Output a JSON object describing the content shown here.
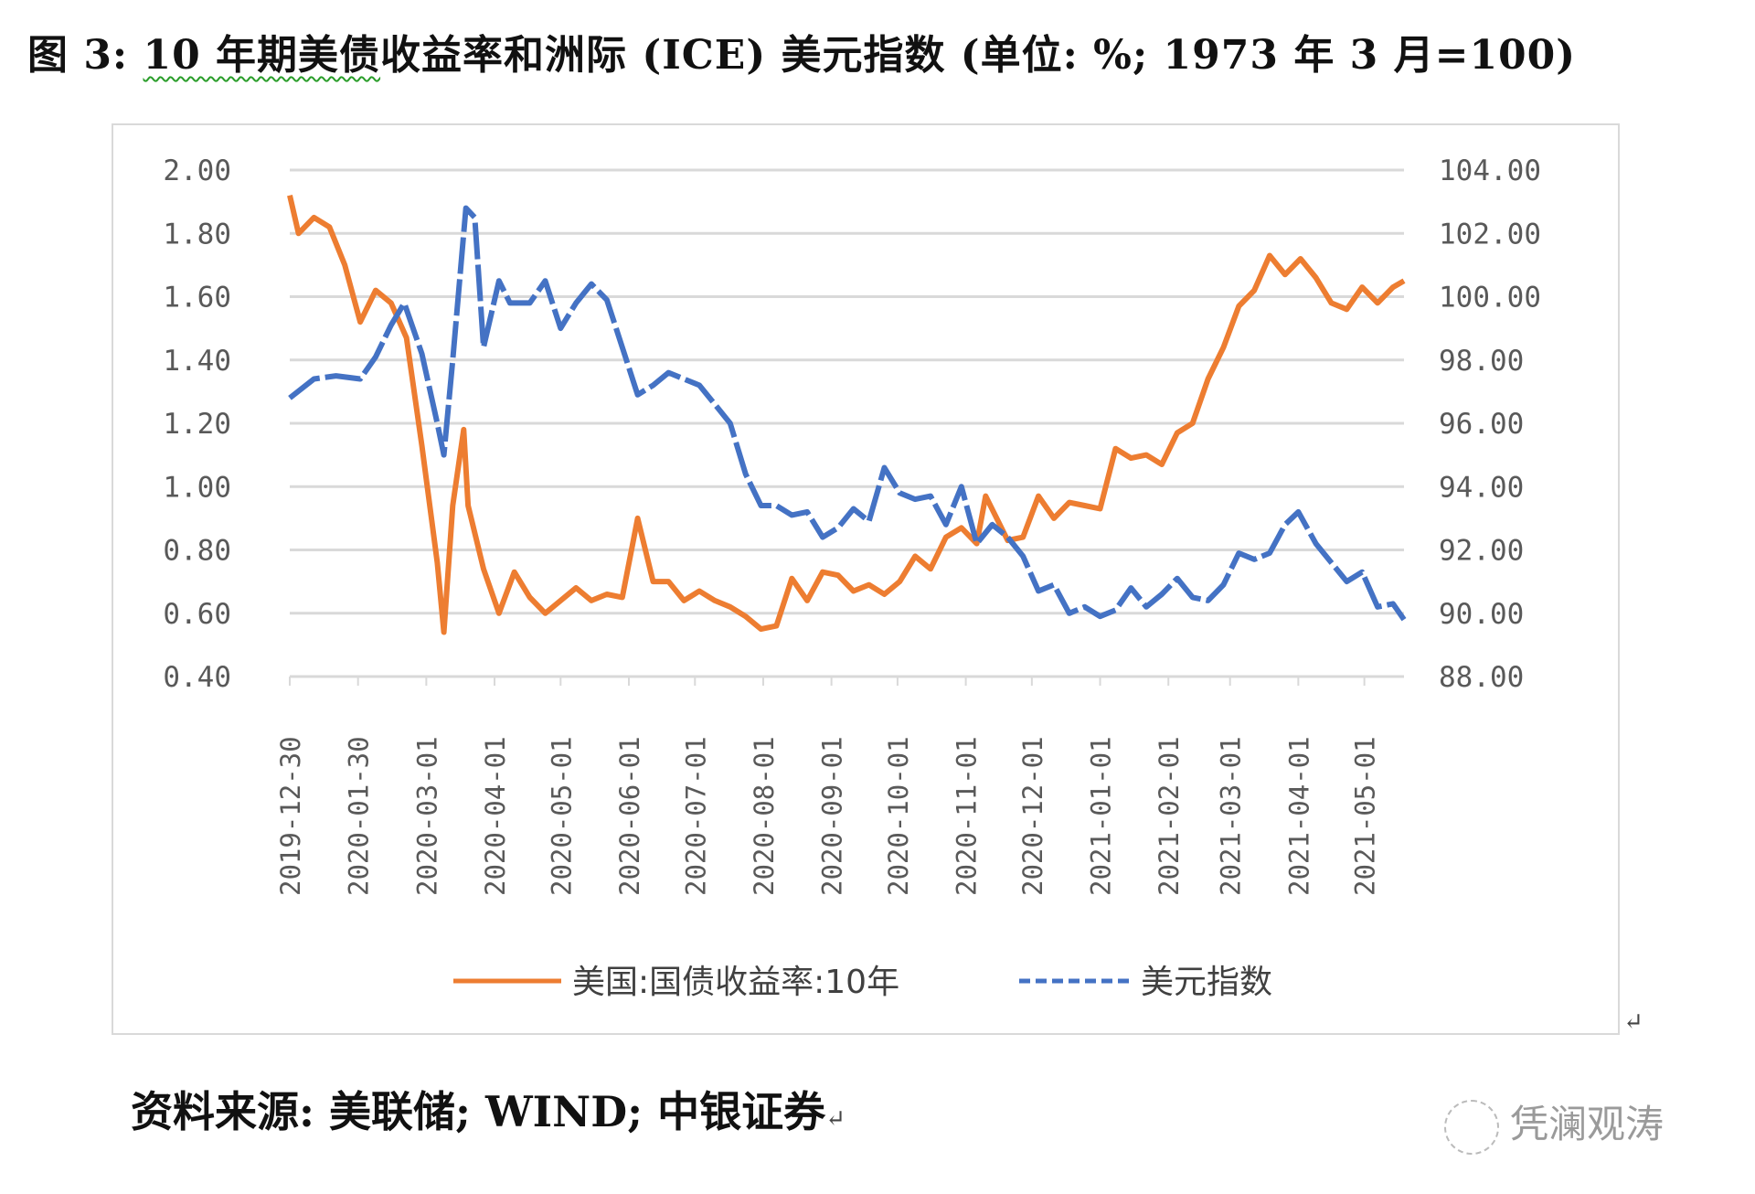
{
  "title": {
    "prefix": "图 3: ",
    "underlined": "10 年期美债",
    "rest": "收益率和洲际 (ICE) 美元指数 (单位: %; 1973 年 3 月=100)"
  },
  "source": "资料来源: 美联储; WIND; 中银证券",
  "return_mark": "↵",
  "watermark": "凭澜观涛",
  "chart_data": {
    "type": "line",
    "title": "",
    "grid": true,
    "legend_position": "bottom",
    "left_axis": {
      "ylim": [
        0.4,
        2.0
      ],
      "ticks": [
        "0.40",
        "0.60",
        "0.80",
        "1.00",
        "1.20",
        "1.40",
        "1.60",
        "1.80",
        "2.00"
      ]
    },
    "right_axis": {
      "ylim": [
        88,
        104
      ],
      "ticks": [
        "88.00",
        "90.00",
        "92.00",
        "94.00",
        "96.00",
        "98.00",
        "100.00",
        "102.00",
        "104.00"
      ]
    },
    "x_axis": {
      "range": [
        "2019-12-30",
        "2021-05-19"
      ],
      "ticks": [
        "2019-12-30",
        "2020-01-30",
        "2020-03-01",
        "2020-04-01",
        "2020-05-01",
        "2020-06-01",
        "2020-07-01",
        "2020-08-01",
        "2020-09-01",
        "2020-10-01",
        "2020-11-01",
        "2020-12-01",
        "2021-01-01",
        "2021-02-01",
        "2021-03-01",
        "2021-04-01",
        "2021-05-01"
      ]
    },
    "colors": {
      "yield": "#ED7D31",
      "dollar": "#4472C4"
    },
    "series": [
      {
        "name": "美国:国债收益率:10年",
        "axis": "left",
        "style": "solid",
        "points": [
          [
            "2019-12-30",
            1.92
          ],
          [
            "2020-01-03",
            1.8
          ],
          [
            "2020-01-10",
            1.85
          ],
          [
            "2020-01-17",
            1.82
          ],
          [
            "2020-01-24",
            1.7
          ],
          [
            "2020-01-31",
            1.52
          ],
          [
            "2020-02-07",
            1.62
          ],
          [
            "2020-02-14",
            1.58
          ],
          [
            "2020-02-21",
            1.47
          ],
          [
            "2020-02-28",
            1.13
          ],
          [
            "2020-03-06",
            0.76
          ],
          [
            "2020-03-09",
            0.54
          ],
          [
            "2020-03-13",
            0.94
          ],
          [
            "2020-03-18",
            1.18
          ],
          [
            "2020-03-20",
            0.94
          ],
          [
            "2020-03-27",
            0.74
          ],
          [
            "2020-04-03",
            0.6
          ],
          [
            "2020-04-10",
            0.73
          ],
          [
            "2020-04-17",
            0.65
          ],
          [
            "2020-04-24",
            0.6
          ],
          [
            "2020-05-01",
            0.64
          ],
          [
            "2020-05-08",
            0.68
          ],
          [
            "2020-05-15",
            0.64
          ],
          [
            "2020-05-22",
            0.66
          ],
          [
            "2020-05-29",
            0.65
          ],
          [
            "2020-06-05",
            0.9
          ],
          [
            "2020-06-12",
            0.7
          ],
          [
            "2020-06-19",
            0.7
          ],
          [
            "2020-06-26",
            0.64
          ],
          [
            "2020-07-03",
            0.67
          ],
          [
            "2020-07-10",
            0.64
          ],
          [
            "2020-07-17",
            0.62
          ],
          [
            "2020-07-24",
            0.59
          ],
          [
            "2020-07-31",
            0.55
          ],
          [
            "2020-08-07",
            0.56
          ],
          [
            "2020-08-14",
            0.71
          ],
          [
            "2020-08-21",
            0.64
          ],
          [
            "2020-08-28",
            0.73
          ],
          [
            "2020-09-04",
            0.72
          ],
          [
            "2020-09-11",
            0.67
          ],
          [
            "2020-09-18",
            0.69
          ],
          [
            "2020-09-25",
            0.66
          ],
          [
            "2020-10-02",
            0.7
          ],
          [
            "2020-10-09",
            0.78
          ],
          [
            "2020-10-16",
            0.74
          ],
          [
            "2020-10-23",
            0.84
          ],
          [
            "2020-10-30",
            0.87
          ],
          [
            "2020-11-06",
            0.82
          ],
          [
            "2020-11-10",
            0.97
          ],
          [
            "2020-11-20",
            0.83
          ],
          [
            "2020-11-27",
            0.84
          ],
          [
            "2020-12-04",
            0.97
          ],
          [
            "2020-12-11",
            0.9
          ],
          [
            "2020-12-18",
            0.95
          ],
          [
            "2020-12-25",
            0.94
          ],
          [
            "2021-01-01",
            0.93
          ],
          [
            "2021-01-08",
            1.12
          ],
          [
            "2021-01-15",
            1.09
          ],
          [
            "2021-01-22",
            1.1
          ],
          [
            "2021-01-29",
            1.07
          ],
          [
            "2021-02-05",
            1.17
          ],
          [
            "2021-02-12",
            1.2
          ],
          [
            "2021-02-19",
            1.34
          ],
          [
            "2021-02-26",
            1.44
          ],
          [
            "2021-03-05",
            1.57
          ],
          [
            "2021-03-12",
            1.62
          ],
          [
            "2021-03-19",
            1.73
          ],
          [
            "2021-03-26",
            1.67
          ],
          [
            "2021-04-02",
            1.72
          ],
          [
            "2021-04-09",
            1.66
          ],
          [
            "2021-04-16",
            1.58
          ],
          [
            "2021-04-23",
            1.56
          ],
          [
            "2021-04-30",
            1.63
          ],
          [
            "2021-05-07",
            1.58
          ],
          [
            "2021-05-14",
            1.63
          ],
          [
            "2021-05-19",
            1.65
          ]
        ]
      },
      {
        "name": "美元指数",
        "axis": "right",
        "style": "dashed",
        "points": [
          [
            "2019-12-30",
            96.8
          ],
          [
            "2020-01-10",
            97.4
          ],
          [
            "2020-01-20",
            97.5
          ],
          [
            "2020-01-31",
            97.4
          ],
          [
            "2020-02-07",
            98.1
          ],
          [
            "2020-02-14",
            99.1
          ],
          [
            "2020-02-20",
            99.8
          ],
          [
            "2020-02-28",
            98.2
          ],
          [
            "2020-03-06",
            96.0
          ],
          [
            "2020-03-09",
            95.0
          ],
          [
            "2020-03-13",
            98.0
          ],
          [
            "2020-03-19",
            102.8
          ],
          [
            "2020-03-23",
            102.5
          ],
          [
            "2020-03-27",
            98.4
          ],
          [
            "2020-04-03",
            100.5
          ],
          [
            "2020-04-08",
            99.8
          ],
          [
            "2020-04-17",
            99.8
          ],
          [
            "2020-04-24",
            100.5
          ],
          [
            "2020-05-01",
            99.0
          ],
          [
            "2020-05-08",
            99.8
          ],
          [
            "2020-05-15",
            100.4
          ],
          [
            "2020-05-22",
            99.9
          ],
          [
            "2020-05-29",
            98.4
          ],
          [
            "2020-06-05",
            96.9
          ],
          [
            "2020-06-12",
            97.2
          ],
          [
            "2020-06-19",
            97.6
          ],
          [
            "2020-06-26",
            97.4
          ],
          [
            "2020-07-03",
            97.2
          ],
          [
            "2020-07-10",
            96.6
          ],
          [
            "2020-07-17",
            96.0
          ],
          [
            "2020-07-24",
            94.4
          ],
          [
            "2020-07-31",
            93.4
          ],
          [
            "2020-08-07",
            93.4
          ],
          [
            "2020-08-14",
            93.1
          ],
          [
            "2020-08-21",
            93.2
          ],
          [
            "2020-08-28",
            92.4
          ],
          [
            "2020-09-04",
            92.7
          ],
          [
            "2020-09-11",
            93.3
          ],
          [
            "2020-09-18",
            92.9
          ],
          [
            "2020-09-25",
            94.6
          ],
          [
            "2020-10-02",
            93.8
          ],
          [
            "2020-10-09",
            93.6
          ],
          [
            "2020-10-16",
            93.7
          ],
          [
            "2020-10-23",
            92.8
          ],
          [
            "2020-10-30",
            94.0
          ],
          [
            "2020-11-06",
            92.2
          ],
          [
            "2020-11-13",
            92.8
          ],
          [
            "2020-11-20",
            92.4
          ],
          [
            "2020-11-27",
            91.8
          ],
          [
            "2020-12-04",
            90.7
          ],
          [
            "2020-12-11",
            90.9
          ],
          [
            "2020-12-18",
            90.0
          ],
          [
            "2020-12-25",
            90.2
          ],
          [
            "2021-01-01",
            89.9
          ],
          [
            "2021-01-08",
            90.1
          ],
          [
            "2021-01-15",
            90.8
          ],
          [
            "2021-01-22",
            90.2
          ],
          [
            "2021-01-29",
            90.6
          ],
          [
            "2021-02-05",
            91.1
          ],
          [
            "2021-02-12",
            90.5
          ],
          [
            "2021-02-19",
            90.4
          ],
          [
            "2021-02-26",
            90.9
          ],
          [
            "2021-03-05",
            91.9
          ],
          [
            "2021-03-12",
            91.7
          ],
          [
            "2021-03-19",
            91.9
          ],
          [
            "2021-03-26",
            92.8
          ],
          [
            "2021-04-01",
            93.2
          ],
          [
            "2021-04-09",
            92.2
          ],
          [
            "2021-04-16",
            91.6
          ],
          [
            "2021-04-23",
            91.0
          ],
          [
            "2021-04-30",
            91.3
          ],
          [
            "2021-05-07",
            90.2
          ],
          [
            "2021-05-14",
            90.3
          ],
          [
            "2021-05-19",
            89.8
          ]
        ]
      }
    ]
  }
}
